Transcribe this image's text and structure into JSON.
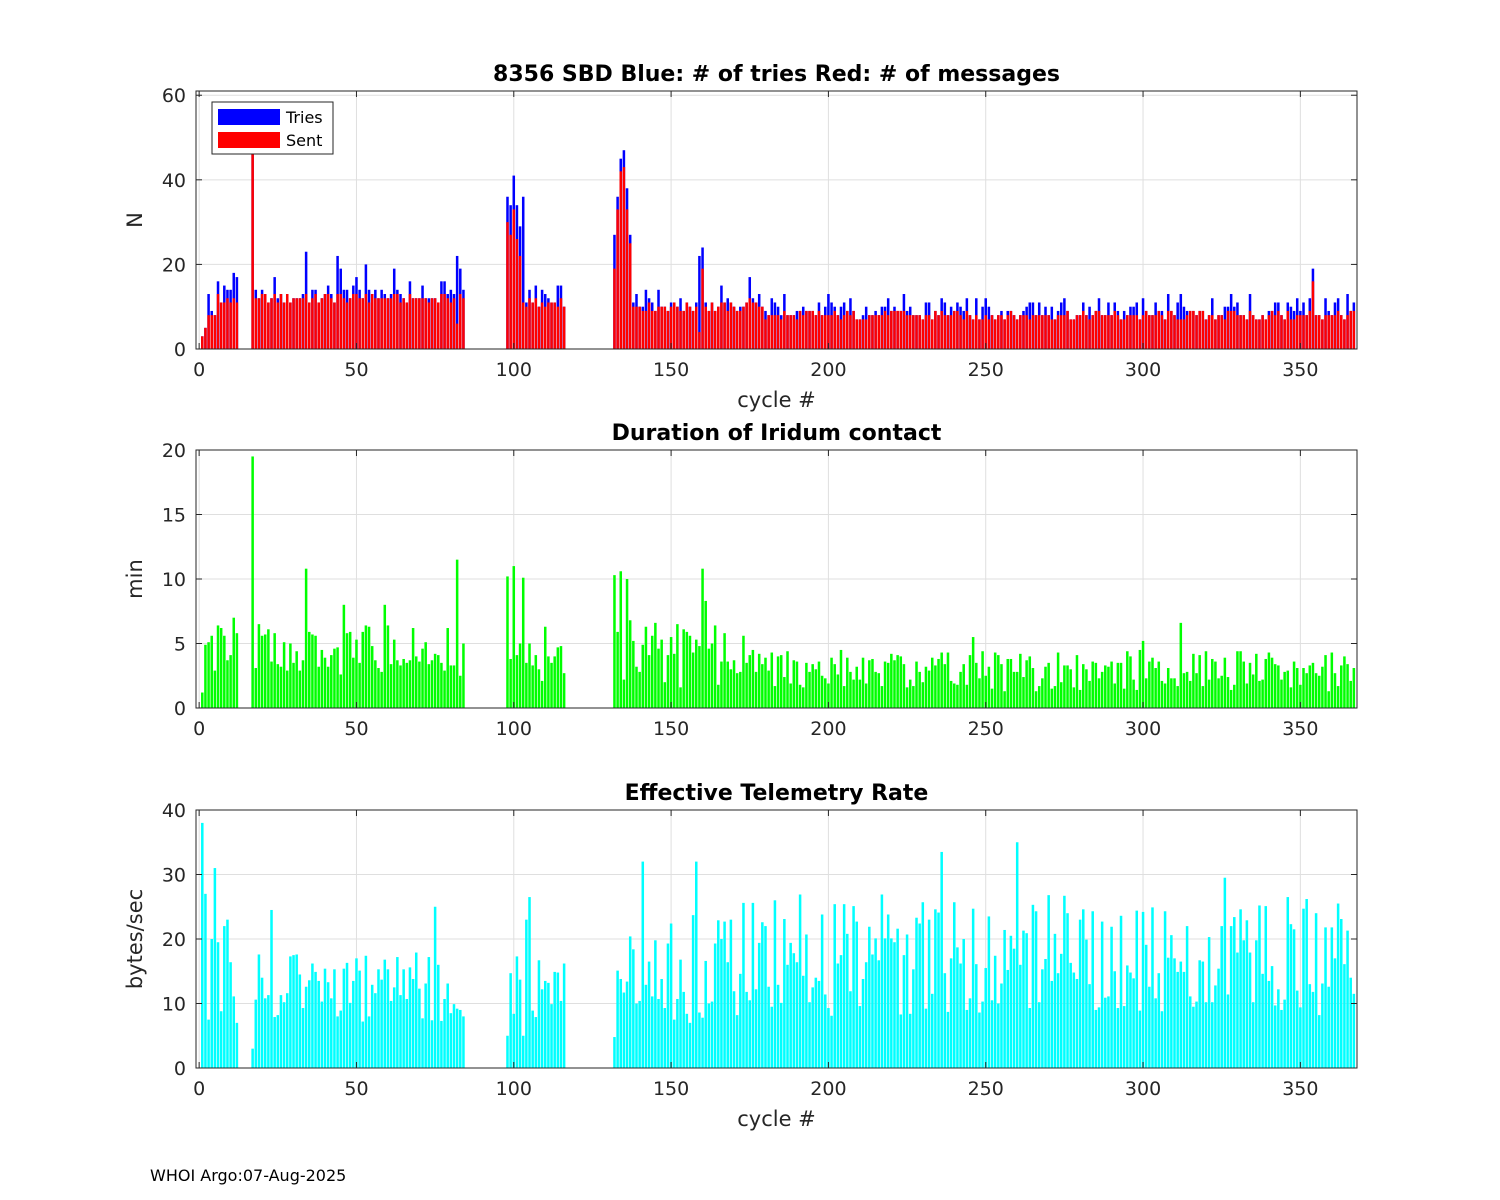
{
  "footer": "WHOI Argo:07-Aug-2025",
  "colors": {
    "tries": "#0000ff",
    "sent": "#ff0000",
    "duration": "#00ff00",
    "rate": "#00ffff"
  },
  "chart_data": [
    {
      "type": "bar",
      "title": "8356 SBD  Blue: # of tries   Red: # of messages",
      "xlabel": "cycle #",
      "ylabel": "N",
      "xlim": [
        -1,
        368
      ],
      "ylim": [
        0,
        61
      ],
      "xticks": [
        0,
        50,
        100,
        150,
        200,
        250,
        300,
        350
      ],
      "yticks": [
        0,
        20,
        40,
        60
      ],
      "legend": {
        "position": "top-left",
        "entries": [
          "Tries",
          "Sent"
        ]
      },
      "x_ranges": [
        [
          1,
          12
        ],
        [
          17,
          84
        ],
        [
          98,
          116
        ],
        [
          132,
          367
        ]
      ],
      "keypoints": [
        {
          "x": 1,
          "tries": 3,
          "sent": 3
        },
        {
          "x": 2,
          "tries": 5,
          "sent": 5
        },
        {
          "x": 3,
          "tries": 13,
          "sent": 8
        },
        {
          "x": 4,
          "tries": 9,
          "sent": 8
        },
        {
          "x": 5,
          "tries": 8,
          "sent": 8
        },
        {
          "x": 7,
          "tries": 11,
          "sent": 11
        },
        {
          "x": 8,
          "tries": 15,
          "sent": 11
        },
        {
          "x": 10,
          "tries": 14,
          "sent": 11
        },
        {
          "x": 11,
          "tries": 18,
          "sent": 12
        },
        {
          "x": 12,
          "tries": 17,
          "sent": 11
        },
        {
          "x": 17,
          "tries": 46,
          "sent": 46
        },
        {
          "x": 18,
          "tries": 14,
          "sent": 12
        },
        {
          "x": 24,
          "tries": 17,
          "sent": 13
        },
        {
          "x": 34,
          "tries": 23,
          "sent": 13
        },
        {
          "x": 44,
          "tries": 22,
          "sent": 13
        },
        {
          "x": 45,
          "tries": 19,
          "sent": 13
        },
        {
          "x": 53,
          "tries": 20,
          "sent": 13
        },
        {
          "x": 62,
          "tries": 19,
          "sent": 13
        },
        {
          "x": 82,
          "tries": 22,
          "sent": 6
        },
        {
          "x": 83,
          "tries": 19,
          "sent": 13
        },
        {
          "x": 84,
          "tries": 14,
          "sent": 12
        },
        {
          "x": 98,
          "tries": 36,
          "sent": 30
        },
        {
          "x": 99,
          "tries": 34,
          "sent": 27
        },
        {
          "x": 100,
          "tries": 41,
          "sent": 33
        },
        {
          "x": 101,
          "tries": 34,
          "sent": 26
        },
        {
          "x": 102,
          "tries": 29,
          "sent": 22
        },
        {
          "x": 103,
          "tries": 36,
          "sent": 11
        },
        {
          "x": 104,
          "tries": 11,
          "sent": 10
        },
        {
          "x": 110,
          "tries": 13,
          "sent": 10
        },
        {
          "x": 114,
          "tries": 15,
          "sent": 10
        },
        {
          "x": 116,
          "tries": 10,
          "sent": 10
        },
        {
          "x": 132,
          "tries": 27,
          "sent": 19
        },
        {
          "x": 133,
          "tries": 36,
          "sent": 33
        },
        {
          "x": 134,
          "tries": 45,
          "sent": 42
        },
        {
          "x": 135,
          "tries": 47,
          "sent": 43
        },
        {
          "x": 136,
          "tries": 38,
          "sent": 33
        },
        {
          "x": 137,
          "tries": 27,
          "sent": 25
        },
        {
          "x": 138,
          "tries": 11,
          "sent": 10
        },
        {
          "x": 142,
          "tries": 14,
          "sent": 9
        },
        {
          "x": 159,
          "tries": 22,
          "sent": 4
        },
        {
          "x": 160,
          "tries": 24,
          "sent": 19
        },
        {
          "x": 175,
          "tries": 17,
          "sent": 12
        },
        {
          "x": 200,
          "tries": 13,
          "sent": 8
        },
        {
          "x": 219,
          "tries": 12,
          "sent": 8
        },
        {
          "x": 250,
          "tries": 12,
          "sent": 8
        },
        {
          "x": 300,
          "tries": 12,
          "sent": 8
        },
        {
          "x": 312,
          "tries": 13,
          "sent": 7
        },
        {
          "x": 349,
          "tries": 12,
          "sent": 8
        },
        {
          "x": 354,
          "tries": 19,
          "sent": 16
        },
        {
          "x": 365,
          "tries": 13,
          "sent": 8
        },
        {
          "x": 367,
          "tries": 11,
          "sent": 9
        }
      ]
    },
    {
      "type": "bar",
      "title": "Duration of Iridum contact",
      "xlabel": "",
      "ylabel": "min",
      "xlim": [
        -1,
        368
      ],
      "ylim": [
        0,
        20
      ],
      "xticks": [
        0,
        50,
        100,
        150,
        200,
        250,
        300,
        350
      ],
      "yticks": [
        0,
        5,
        10,
        15,
        20
      ],
      "x_ranges": [
        [
          1,
          12
        ],
        [
          17,
          84
        ],
        [
          98,
          116
        ],
        [
          132,
          367
        ]
      ],
      "keypoints": [
        {
          "x": 1,
          "value": 1.2
        },
        {
          "x": 2,
          "value": 4.9
        },
        {
          "x": 6,
          "value": 6.4
        },
        {
          "x": 11,
          "value": 7.0
        },
        {
          "x": 12,
          "value": 5.8
        },
        {
          "x": 17,
          "value": 19.5
        },
        {
          "x": 34,
          "value": 10.8
        },
        {
          "x": 46,
          "value": 8.0
        },
        {
          "x": 59,
          "value": 8.0
        },
        {
          "x": 82,
          "value": 11.5
        },
        {
          "x": 84,
          "value": 5.0
        },
        {
          "x": 98,
          "value": 10.2
        },
        {
          "x": 100,
          "value": 11.0
        },
        {
          "x": 103,
          "value": 10.1
        },
        {
          "x": 104,
          "value": 3.5
        },
        {
          "x": 110,
          "value": 6.3
        },
        {
          "x": 116,
          "value": 2.7
        },
        {
          "x": 132,
          "value": 10.3
        },
        {
          "x": 134,
          "value": 10.6
        },
        {
          "x": 136,
          "value": 10.0
        },
        {
          "x": 137,
          "value": 6.8
        },
        {
          "x": 145,
          "value": 6.6
        },
        {
          "x": 160,
          "value": 10.8
        },
        {
          "x": 161,
          "value": 8.3
        },
        {
          "x": 173,
          "value": 5.6
        },
        {
          "x": 246,
          "value": 5.5
        },
        {
          "x": 300,
          "value": 5.2
        },
        {
          "x": 312,
          "value": 6.6
        },
        {
          "x": 367,
          "value": 3.1
        }
      ]
    },
    {
      "type": "bar",
      "title": "Effective Telemetry Rate",
      "xlabel": "cycle #",
      "ylabel": "bytes/sec",
      "xlim": [
        -1,
        368
      ],
      "ylim": [
        0,
        40
      ],
      "xticks": [
        0,
        50,
        100,
        150,
        200,
        250,
        300,
        350
      ],
      "yticks": [
        0,
        10,
        20,
        30,
        40
      ],
      "x_ranges": [
        [
          1,
          12
        ],
        [
          17,
          84
        ],
        [
          98,
          116
        ],
        [
          132,
          367
        ]
      ],
      "keypoints": [
        {
          "x": 1,
          "value": 38
        },
        {
          "x": 2,
          "value": 27
        },
        {
          "x": 3,
          "value": 7.5
        },
        {
          "x": 4,
          "value": 20
        },
        {
          "x": 5,
          "value": 31
        },
        {
          "x": 6,
          "value": 19.5
        },
        {
          "x": 8,
          "value": 22
        },
        {
          "x": 9,
          "value": 23
        },
        {
          "x": 12,
          "value": 7
        },
        {
          "x": 17,
          "value": 3
        },
        {
          "x": 23,
          "value": 24.5
        },
        {
          "x": 75,
          "value": 25
        },
        {
          "x": 83,
          "value": 9
        },
        {
          "x": 84,
          "value": 8
        },
        {
          "x": 98,
          "value": 5
        },
        {
          "x": 103,
          "value": 5
        },
        {
          "x": 104,
          "value": 23
        },
        {
          "x": 105,
          "value": 26.5
        },
        {
          "x": 116,
          "value": 16.2
        },
        {
          "x": 132,
          "value": 4.8
        },
        {
          "x": 141,
          "value": 32
        },
        {
          "x": 158,
          "value": 32
        },
        {
          "x": 236,
          "value": 33.5
        },
        {
          "x": 260,
          "value": 35
        },
        {
          "x": 326,
          "value": 29.5
        },
        {
          "x": 355,
          "value": 24
        },
        {
          "x": 366,
          "value": 14
        },
        {
          "x": 367,
          "value": 11.5
        }
      ]
    }
  ]
}
